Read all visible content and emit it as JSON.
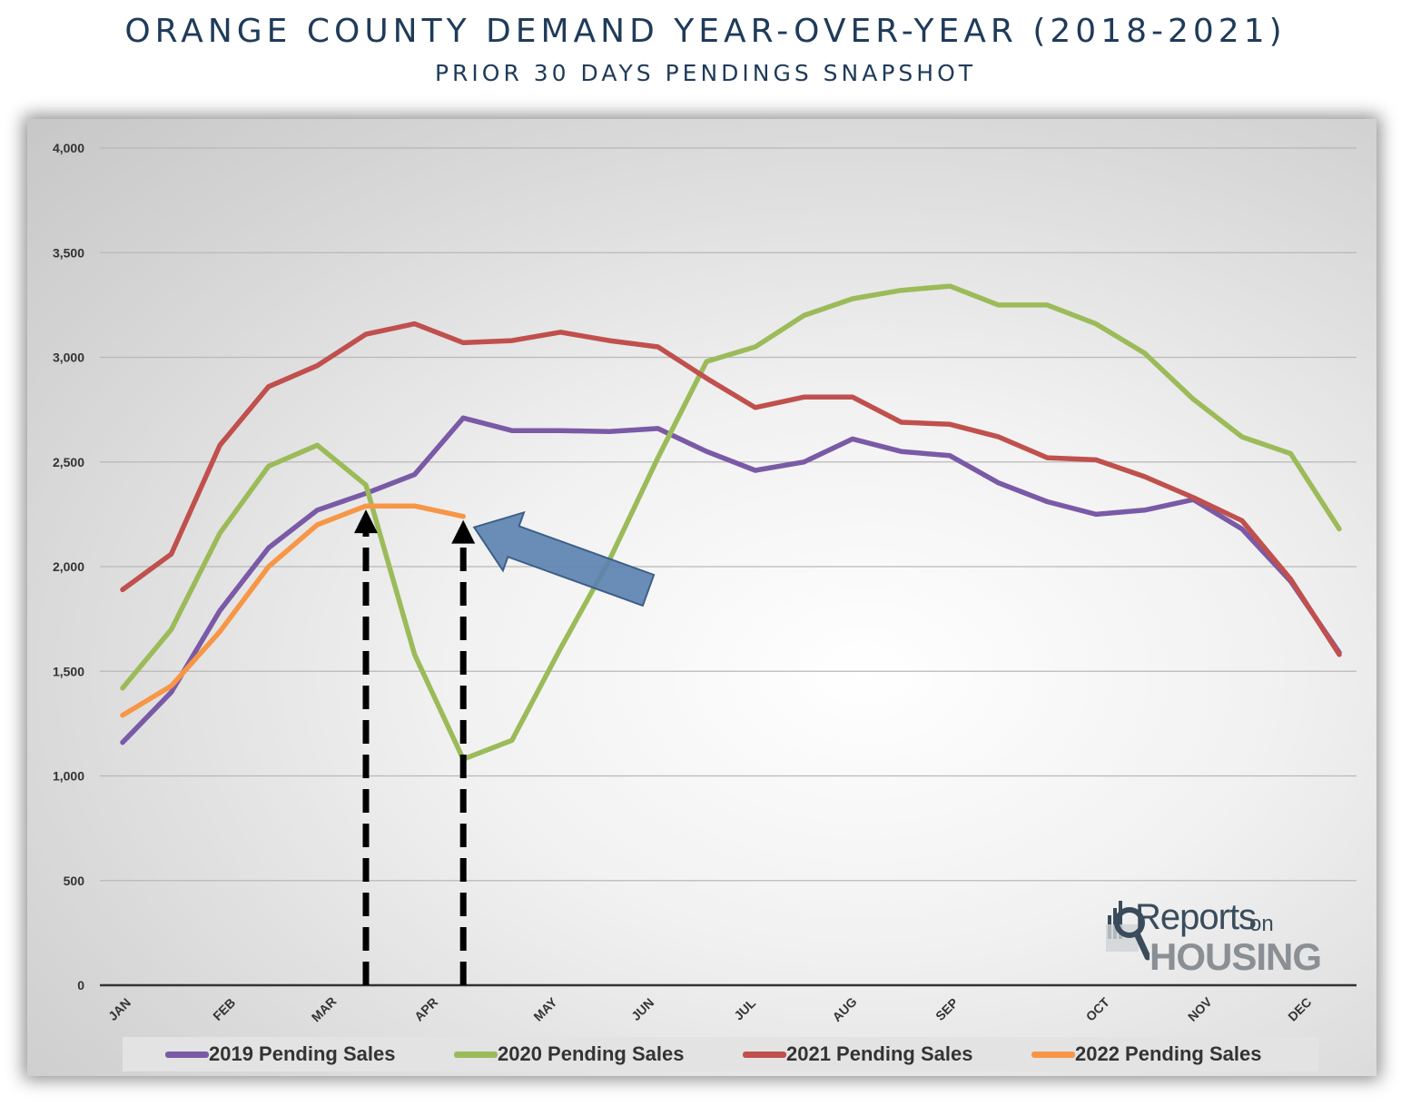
{
  "title": "ORANGE COUNTY DEMAND YEAR-OVER-YEAR (2018-2021)",
  "subtitle": "PRIOR 30 DAYS PENDINGS SNAPSHOT",
  "logo": {
    "top": "Reports",
    "on": "on",
    "bottom": "HOUSING"
  },
  "chart_data": {
    "type": "line",
    "title": "ORANGE COUNTY DEMAND YEAR-OVER-YEAR (2018-2021)",
    "subtitle": "PRIOR 30 DAYS PENDINGS SNAPSHOT",
    "ylim": [
      0,
      4000
    ],
    "yticks": [
      "4,000",
      "3,500",
      "3,000",
      "2,500",
      "2,000",
      "1,500",
      "1,000",
      "500",
      "0"
    ],
    "ytick_values": [
      4000,
      3500,
      3000,
      2500,
      2000,
      1500,
      1000,
      500,
      0
    ],
    "xlabels": [
      {
        "label": "JAN",
        "week": 0
      },
      {
        "label": "FEB",
        "week": 4.3
      },
      {
        "label": "MAR",
        "week": 8.4
      },
      {
        "label": "APR",
        "week": 12.6
      },
      {
        "label": "MAY",
        "week": 17.5
      },
      {
        "label": "JUN",
        "week": 21.5
      },
      {
        "label": "JUL",
        "week": 25.7
      },
      {
        "label": "AUG",
        "week": 29.8
      },
      {
        "label": "SEP",
        "week": 34
      },
      {
        "label": "OCT",
        "week": 40.2
      },
      {
        "label": "NOV",
        "week": 44.4
      },
      {
        "label": "DEC",
        "week": 48.5
      }
    ],
    "xlim": [
      0,
      53
    ],
    "grid": true,
    "legend_position": "bottom",
    "series": [
      {
        "name": "2019 Pending Sales",
        "color": "#7a5aa6",
        "points": [
          [
            0,
            1160
          ],
          [
            2,
            1400
          ],
          [
            4,
            1790
          ],
          [
            6,
            2090
          ],
          [
            8,
            2270
          ],
          [
            10,
            2350
          ],
          [
            12,
            2440
          ],
          [
            14,
            2710
          ],
          [
            16,
            2650
          ],
          [
            18,
            2650
          ],
          [
            20,
            2645
          ],
          [
            22,
            2660
          ],
          [
            24,
            2550
          ],
          [
            26,
            2460
          ],
          [
            28,
            2500
          ],
          [
            30,
            2610
          ],
          [
            32,
            2550
          ],
          [
            34,
            2530
          ],
          [
            36,
            2400
          ],
          [
            38,
            2310
          ],
          [
            40,
            2250
          ],
          [
            42,
            2270
          ],
          [
            44,
            2320
          ],
          [
            46,
            2180
          ],
          [
            48,
            1930
          ],
          [
            50,
            1590
          ]
        ]
      },
      {
        "name": "2020 Pending Sales",
        "color": "#9bbb59",
        "points": [
          [
            0,
            1420
          ],
          [
            2,
            1700
          ],
          [
            4,
            2160
          ],
          [
            6,
            2480
          ],
          [
            8,
            2580
          ],
          [
            10,
            2390
          ],
          [
            12,
            1580
          ],
          [
            14,
            1080
          ],
          [
            16,
            1170
          ],
          [
            18,
            1610
          ],
          [
            20,
            2030
          ],
          [
            22,
            2520
          ],
          [
            24,
            2980
          ],
          [
            26,
            3050
          ],
          [
            28,
            3200
          ],
          [
            30,
            3280
          ],
          [
            32,
            3320
          ],
          [
            34,
            3340
          ],
          [
            36,
            3250
          ],
          [
            38,
            3250
          ],
          [
            40,
            3160
          ],
          [
            42,
            3020
          ],
          [
            44,
            2800
          ],
          [
            46,
            2620
          ],
          [
            48,
            2540
          ],
          [
            50,
            2180
          ]
        ]
      },
      {
        "name": "2021 Pending Sales",
        "color": "#c0504d",
        "points": [
          [
            0,
            1890
          ],
          [
            2,
            2060
          ],
          [
            4,
            2580
          ],
          [
            6,
            2860
          ],
          [
            8,
            2960
          ],
          [
            10,
            3110
          ],
          [
            12,
            3160
          ],
          [
            14,
            3070
          ],
          [
            16,
            3080
          ],
          [
            18,
            3120
          ],
          [
            20,
            3080
          ],
          [
            22,
            3050
          ],
          [
            24,
            2900
          ],
          [
            26,
            2760
          ],
          [
            28,
            2810
          ],
          [
            30,
            2810
          ],
          [
            32,
            2690
          ],
          [
            34,
            2680
          ],
          [
            36,
            2620
          ],
          [
            38,
            2520
          ],
          [
            40,
            2510
          ],
          [
            42,
            2430
          ],
          [
            44,
            2330
          ],
          [
            46,
            2220
          ],
          [
            48,
            1940
          ],
          [
            50,
            1580
          ]
        ]
      },
      {
        "name": "2022 Pending Sales",
        "color": "#f79646",
        "points": [
          [
            0,
            1290
          ],
          [
            2,
            1430
          ],
          [
            4,
            1690
          ],
          [
            6,
            2000
          ],
          [
            8,
            2200
          ],
          [
            10,
            2290
          ],
          [
            12,
            2290
          ],
          [
            14,
            2240
          ]
        ]
      }
    ],
    "annotations": [
      {
        "type": "dashed-arrow",
        "week": 10,
        "from": 0,
        "to": 2290
      },
      {
        "type": "dashed-arrow",
        "week": 14,
        "from": 0,
        "to": 2240
      },
      {
        "type": "block-arrow",
        "points_to_week": 14,
        "points_to_value": 2240
      }
    ]
  }
}
